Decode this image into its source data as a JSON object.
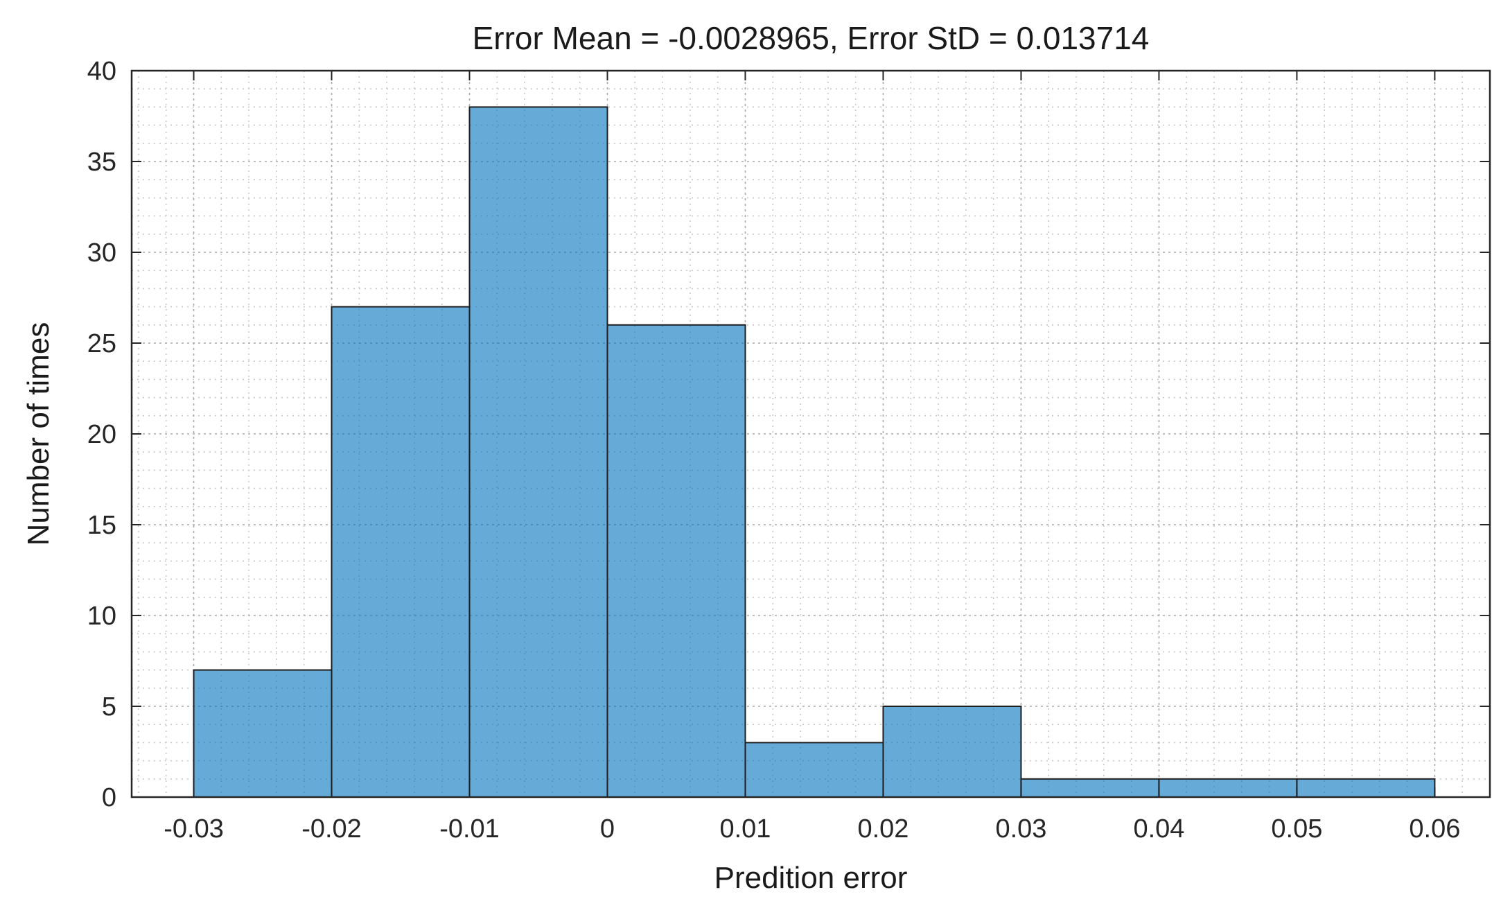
{
  "figure": {
    "background": "#ffffff"
  },
  "chart_data": {
    "type": "bar",
    "subtype": "histogram",
    "title": "Error Mean = -0.0028965, Error StD = 0.013714",
    "xlabel": "Predition error",
    "ylabel": "Number of times",
    "bin_edges": [
      -0.03,
      -0.02,
      -0.01,
      0,
      0.01,
      0.02,
      0.03,
      0.04,
      0.05,
      0.06
    ],
    "counts": [
      7,
      27,
      38,
      26,
      3,
      5,
      1,
      1,
      1
    ],
    "xlim": [
      -0.0345,
      0.064
    ],
    "ylim": [
      0,
      40
    ],
    "xtick_values": [
      -0.03,
      -0.02,
      -0.01,
      0,
      0.01,
      0.02,
      0.03,
      0.04,
      0.05,
      0.06
    ],
    "xtick_labels": [
      "-0.03",
      "-0.02",
      "-0.01",
      "0",
      "0.01",
      "0.02",
      "0.03",
      "0.04",
      "0.05",
      "0.06"
    ],
    "ytick_values": [
      0,
      5,
      10,
      15,
      20,
      25,
      30,
      35,
      40
    ],
    "ytick_labels": [
      "0",
      "5",
      "10",
      "15",
      "20",
      "25",
      "30",
      "35",
      "40"
    ],
    "minor_x_step": 0.002,
    "minor_y_step": 1,
    "grid": "on",
    "minor_grid": "on",
    "legend": "none",
    "colors": {
      "bar_fill": "rgba(0,114,189,0.6)",
      "bar_edge": "#1f1f1f",
      "axis": "#262626",
      "major_grid": "#a8a8a8",
      "minor_grid": "#c8c8c8",
      "text": "#262626"
    }
  }
}
